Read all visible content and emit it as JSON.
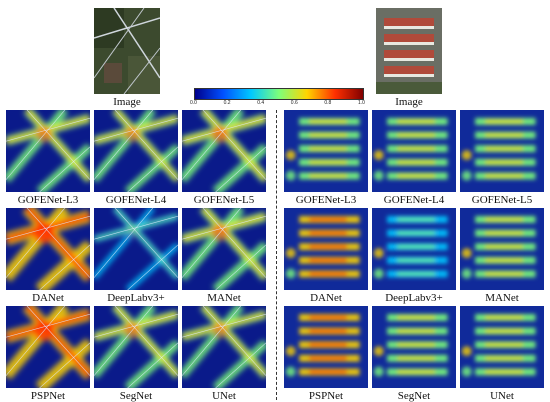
{
  "left": {
    "image_label": "Image",
    "rows": [
      [
        "GOFENet-L3",
        "GOFENet-L4",
        "GOFENet-L5"
      ],
      [
        "DANet",
        "DeepLabv3+",
        "MANet"
      ],
      [
        "PSPNet",
        "SegNet",
        "UNet"
      ]
    ]
  },
  "right": {
    "image_label": "Image",
    "rows": [
      [
        "GOFENet-L3",
        "GOFENet-L4",
        "GOFENet-L5"
      ],
      [
        "DANet",
        "DeepLabv3+",
        "MANet"
      ],
      [
        "PSPNet",
        "SegNet",
        "UNet"
      ]
    ]
  },
  "colorbar": {
    "ticks": [
      "0.0",
      "0.2",
      "0.4",
      "0.6",
      "0.8",
      "1.0"
    ],
    "colors": [
      "#00008b",
      "#0050ff",
      "#00c8ff",
      "#7dff7a",
      "#ffd400",
      "#ff3000",
      "#800000"
    ]
  }
}
